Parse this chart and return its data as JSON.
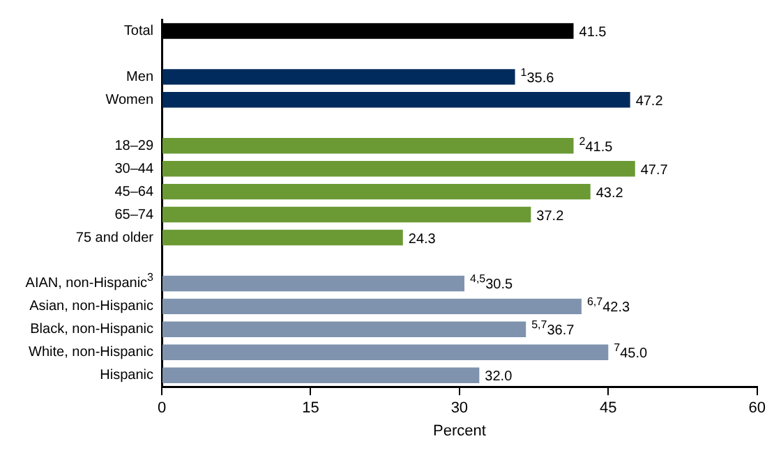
{
  "chart_data": {
    "type": "bar",
    "orientation": "horizontal",
    "xlabel": "Percent",
    "categories": [
      "Total",
      null,
      "Men",
      "Women",
      null,
      "18–29",
      "30–44",
      "45–64",
      "65–74",
      "75 and older",
      null,
      "AIAN, non-Hispanic$^{3}$",
      "Asian, non-Hispanic",
      "Black, non-Hispanic",
      "White, non-Hispanic",
      "Hispanic"
    ],
    "values": [
      41.5,
      null,
      35.6,
      47.2,
      null,
      41.5,
      47.7,
      43.2,
      37.2,
      24.3,
      null,
      30.5,
      42.3,
      36.7,
      45.0,
      32.0
    ],
    "colors": [
      "#000000",
      null,
      "#002b5c",
      "#002b5c",
      null,
      "#6b9a34",
      "#6b9a34",
      "#6b9a34",
      "#6b9a34",
      "#6b9a34",
      null,
      "#7f93ae",
      "#7f93ae",
      "#7f93ae",
      "#7f93ae",
      "#7f93ae"
    ],
    "value_labels": [
      "41.5",
      null,
      "$^{1}$35.6",
      "47.2",
      null,
      "$^{2}$41.5",
      "47.7",
      "43.2",
      "37.2",
      "24.3",
      null,
      "$^{4,5}$30.5",
      "$^{6,7}$42.3",
      "$^{5,7}$36.7",
      "$^{7}$45.0",
      "32.0"
    ],
    "xlim": [
      0,
      60
    ],
    "xticks": [
      0,
      15,
      30,
      45,
      60
    ]
  }
}
